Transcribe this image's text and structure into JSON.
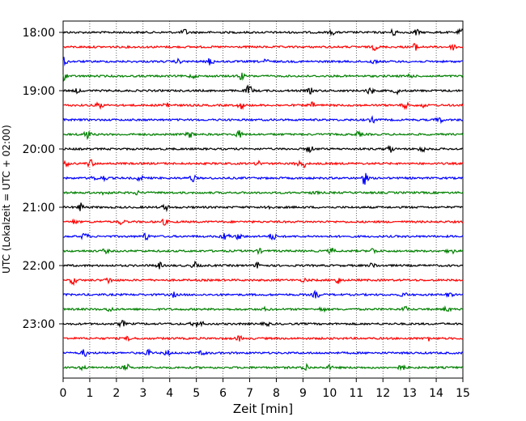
{
  "chart_data": {
    "type": "line",
    "title": "",
    "xlabel": "Zeit  [min]",
    "ylabel": "UTC (Lokalzeit = UTC + 02:00)",
    "xlim": [
      0,
      15
    ],
    "x_ticks": [
      "0",
      "1",
      "2",
      "3",
      "4",
      "5",
      "6",
      "7",
      "8",
      "9",
      "10",
      "11",
      "12",
      "13",
      "14",
      "15"
    ],
    "y_ticks": [
      "18:00",
      "19:00",
      "20:00",
      "21:00",
      "22:00",
      "23:00"
    ],
    "grid": "vertical dotted lines at each minute",
    "trace_start_times": [
      "18:00",
      "18:15",
      "18:30",
      "18:45",
      "19:00",
      "19:15",
      "19:30",
      "19:45",
      "20:00",
      "20:15",
      "20:30",
      "20:45",
      "21:00",
      "21:15",
      "21:30",
      "21:45",
      "22:00",
      "22:15",
      "22:30",
      "22:45",
      "23:00",
      "23:15",
      "23:30",
      "23:45"
    ],
    "trace_colors": [
      "#000000",
      "#ff0000",
      "#0000ff",
      "#008000"
    ],
    "series": []
  }
}
